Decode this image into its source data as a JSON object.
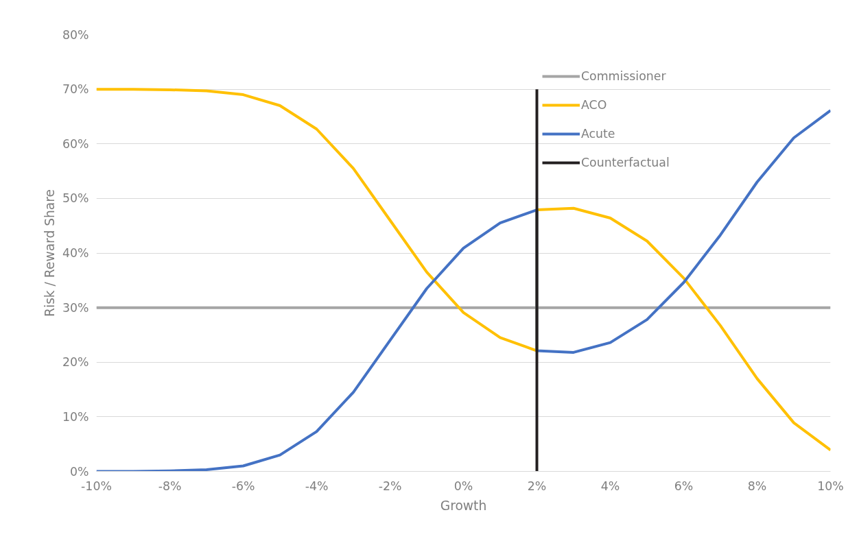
{
  "chart_data": {
    "type": "line",
    "xlabel": "Growth",
    "ylabel": "Risk / Reward Share",
    "xlim": [
      -10,
      10
    ],
    "ylim": [
      0,
      80
    ],
    "xticks": [
      {
        "value": -10,
        "label": "-10%"
      },
      {
        "value": -8,
        "label": "-8%"
      },
      {
        "value": -6,
        "label": "-6%"
      },
      {
        "value": -4,
        "label": "-4%"
      },
      {
        "value": -2,
        "label": "-2%"
      },
      {
        "value": 0,
        "label": "0%"
      },
      {
        "value": 2,
        "label": "2%"
      },
      {
        "value": 4,
        "label": "4%"
      },
      {
        "value": 6,
        "label": "6%"
      },
      {
        "value": 8,
        "label": "8%"
      },
      {
        "value": 10,
        "label": "10%"
      }
    ],
    "yticks": [
      {
        "value": 0,
        "label": "0%"
      },
      {
        "value": 10,
        "label": "10%"
      },
      {
        "value": 20,
        "label": "20%"
      },
      {
        "value": 30,
        "label": "30%"
      },
      {
        "value": 40,
        "label": "40%"
      },
      {
        "value": 50,
        "label": "50%"
      },
      {
        "value": 60,
        "label": "60%"
      },
      {
        "value": 70,
        "label": "70%"
      },
      {
        "value": 80,
        "label": "80%"
      }
    ],
    "grid": "y",
    "legend": "top right",
    "marker": "none",
    "line_style": "solid",
    "series": [
      {
        "name": "Commissioner",
        "color": "#a5a5a5",
        "x": [
          -10,
          10
        ],
        "values": [
          30,
          30
        ]
      },
      {
        "name": "ACO",
        "color": "#ffc000",
        "x": [
          -10,
          -9,
          -8,
          -7,
          -6,
          -5,
          -4,
          -3,
          -2,
          -1,
          0,
          1,
          2,
          2,
          3,
          4,
          5,
          6,
          7,
          8,
          9,
          10
        ],
        "values": [
          70.0,
          70.0,
          69.9,
          69.7,
          69.0,
          67.0,
          62.7,
          55.5,
          46.0,
          36.5,
          29.1,
          24.5,
          22.1,
          47.9,
          48.2,
          46.4,
          42.2,
          35.4,
          26.7,
          17.0,
          8.9,
          3.9
        ]
      },
      {
        "name": "Acute",
        "color": "#4472c4",
        "x": [
          -10,
          -9,
          -8,
          -7,
          -6,
          -5,
          -4,
          -3,
          -2,
          -1,
          0,
          1,
          2,
          2,
          3,
          4,
          5,
          6,
          7,
          8,
          9,
          10
        ],
        "values": [
          0.0,
          0.0,
          0.1,
          0.3,
          1.0,
          3.0,
          7.3,
          14.5,
          24.0,
          33.5,
          40.9,
          45.5,
          47.9,
          22.1,
          21.8,
          23.6,
          27.8,
          34.6,
          43.3,
          53.0,
          61.1,
          66.1
        ]
      },
      {
        "name": "Counterfactual",
        "color": "#231f20",
        "x": [
          2,
          2
        ],
        "values": [
          0,
          70
        ]
      }
    ]
  }
}
